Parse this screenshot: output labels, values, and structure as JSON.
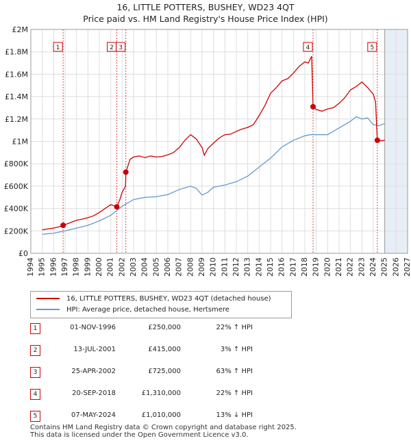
{
  "chart_data": {
    "type": "line",
    "title": "16, LITTLE POTTERS, BUSHEY, WD23 4QT",
    "subtitle": "Price paid vs. HM Land Registry's House Price Index (HPI)",
    "xlim": [
      1994,
      2027
    ],
    "ylim": [
      0,
      2000000
    ],
    "x_ticks": [
      1994,
      1995,
      1996,
      1997,
      1998,
      1999,
      2000,
      2001,
      2002,
      2003,
      2004,
      2005,
      2006,
      2007,
      2008,
      2009,
      2010,
      2011,
      2012,
      2013,
      2014,
      2015,
      2016,
      2017,
      2018,
      2019,
      2020,
      2021,
      2022,
      2023,
      2024,
      2025,
      2026,
      2027
    ],
    "y_ticks": [
      0,
      200000,
      400000,
      600000,
      800000,
      1000000,
      1200000,
      1400000,
      1600000,
      1800000,
      2000000
    ],
    "y_tick_labels": [
      "£0",
      "£200K",
      "£400K",
      "£600K",
      "£800K",
      "£1M",
      "£1.2M",
      "£1.4M",
      "£1.6M",
      "£1.8M",
      "£2M"
    ],
    "grid": true,
    "shaded_after": 2025.0,
    "colors": {
      "property": "#cc0000",
      "hpi": "#6699cc",
      "shade": "#e8eef6",
      "vline": "#dd4444"
    },
    "series": [
      {
        "name": "16, LITTLE POTTERS, BUSHEY, WD23 4QT (detached house)",
        "color": "#cc0000",
        "points": [
          [
            1995.0,
            210000
          ],
          [
            1995.5,
            218000
          ],
          [
            1996.0,
            225000
          ],
          [
            1996.5,
            238000
          ],
          [
            1996.83,
            250000
          ],
          [
            1997.5,
            275000
          ],
          [
            1998.0,
            295000
          ],
          [
            1998.5,
            305000
          ],
          [
            1999.0,
            318000
          ],
          [
            1999.5,
            335000
          ],
          [
            2000.0,
            365000
          ],
          [
            2000.5,
            400000
          ],
          [
            2001.0,
            435000
          ],
          [
            2001.53,
            415000
          ],
          [
            2001.8,
            480000
          ],
          [
            2002.0,
            545000
          ],
          [
            2002.3,
            600000
          ],
          [
            2002.32,
            725000
          ],
          [
            2002.7,
            840000
          ],
          [
            2003.0,
            860000
          ],
          [
            2003.5,
            870000
          ],
          [
            2004.0,
            855000
          ],
          [
            2004.5,
            870000
          ],
          [
            2005.0,
            860000
          ],
          [
            2005.5,
            865000
          ],
          [
            2006.0,
            880000
          ],
          [
            2006.5,
            900000
          ],
          [
            2007.0,
            945000
          ],
          [
            2007.5,
            1010000
          ],
          [
            2008.0,
            1060000
          ],
          [
            2008.5,
            1020000
          ],
          [
            2009.0,
            945000
          ],
          [
            2009.2,
            875000
          ],
          [
            2009.5,
            935000
          ],
          [
            2010.0,
            985000
          ],
          [
            2010.5,
            1030000
          ],
          [
            2011.0,
            1060000
          ],
          [
            2011.5,
            1065000
          ],
          [
            2012.0,
            1090000
          ],
          [
            2012.5,
            1110000
          ],
          [
            2013.0,
            1125000
          ],
          [
            2013.5,
            1150000
          ],
          [
            2014.0,
            1230000
          ],
          [
            2014.5,
            1320000
          ],
          [
            2015.0,
            1430000
          ],
          [
            2015.5,
            1480000
          ],
          [
            2016.0,
            1540000
          ],
          [
            2016.5,
            1560000
          ],
          [
            2017.0,
            1610000
          ],
          [
            2017.5,
            1670000
          ],
          [
            2018.0,
            1710000
          ],
          [
            2018.3,
            1700000
          ],
          [
            2018.6,
            1760000
          ],
          [
            2018.72,
            1310000
          ],
          [
            2019.0,
            1285000
          ],
          [
            2019.5,
            1270000
          ],
          [
            2020.0,
            1290000
          ],
          [
            2020.5,
            1300000
          ],
          [
            2021.0,
            1340000
          ],
          [
            2021.5,
            1390000
          ],
          [
            2022.0,
            1460000
          ],
          [
            2022.5,
            1490000
          ],
          [
            2023.0,
            1530000
          ],
          [
            2023.5,
            1480000
          ],
          [
            2024.0,
            1420000
          ],
          [
            2024.2,
            1350000
          ],
          [
            2024.35,
            1010000
          ],
          [
            2024.7,
            1005000
          ],
          [
            2025.0,
            1010000
          ]
        ]
      },
      {
        "name": "HPI: Average price, detached house, Hertsmere",
        "color": "#6699cc",
        "points": [
          [
            1995.0,
            170000
          ],
          [
            1996.0,
            180000
          ],
          [
            1997.0,
            200000
          ],
          [
            1998.0,
            225000
          ],
          [
            1999.0,
            250000
          ],
          [
            2000.0,
            290000
          ],
          [
            2001.0,
            340000
          ],
          [
            2002.0,
            420000
          ],
          [
            2003.0,
            480000
          ],
          [
            2004.0,
            500000
          ],
          [
            2005.0,
            505000
          ],
          [
            2006.0,
            525000
          ],
          [
            2007.0,
            570000
          ],
          [
            2008.0,
            600000
          ],
          [
            2008.5,
            580000
          ],
          [
            2009.0,
            520000
          ],
          [
            2009.5,
            545000
          ],
          [
            2010.0,
            590000
          ],
          [
            2011.0,
            610000
          ],
          [
            2012.0,
            640000
          ],
          [
            2013.0,
            690000
          ],
          [
            2014.0,
            770000
          ],
          [
            2015.0,
            850000
          ],
          [
            2016.0,
            950000
          ],
          [
            2017.0,
            1010000
          ],
          [
            2018.0,
            1050000
          ],
          [
            2018.5,
            1060000
          ],
          [
            2019.0,
            1060000
          ],
          [
            2020.0,
            1060000
          ],
          [
            2021.0,
            1120000
          ],
          [
            2022.0,
            1180000
          ],
          [
            2022.5,
            1220000
          ],
          [
            2023.0,
            1200000
          ],
          [
            2023.5,
            1210000
          ],
          [
            2024.0,
            1150000
          ],
          [
            2024.5,
            1140000
          ],
          [
            2025.0,
            1160000
          ]
        ]
      }
    ],
    "transactions": [
      {
        "n": "1",
        "x": 1996.83,
        "price": 250000
      },
      {
        "n": "2",
        "x": 2001.53,
        "price": 415000
      },
      {
        "n": "3",
        "x": 2002.32,
        "price": 725000
      },
      {
        "n": "4",
        "x": 2018.72,
        "price": 1310000
      },
      {
        "n": "5",
        "x": 2024.35,
        "price": 1010000
      }
    ]
  },
  "legend": {
    "property_label": "16, LITTLE POTTERS, BUSHEY, WD23 4QT (detached house)",
    "hpi_label": "HPI: Average price, detached house, Hertsmere"
  },
  "table": [
    {
      "n": "1",
      "date": "01-NOV-1996",
      "price": "£250,000",
      "hpi": "22% ↑ HPI"
    },
    {
      "n": "2",
      "date": "13-JUL-2001",
      "price": "£415,000",
      "hpi": "3% ↑ HPI"
    },
    {
      "n": "3",
      "date": "25-APR-2002",
      "price": "£725,000",
      "hpi": "63% ↑ HPI"
    },
    {
      "n": "4",
      "date": "20-SEP-2018",
      "price": "£1,310,000",
      "hpi": "22% ↑ HPI"
    },
    {
      "n": "5",
      "date": "07-MAY-2024",
      "price": "£1,010,000",
      "hpi": "13% ↓ HPI"
    }
  ],
  "footer": {
    "line1": "Contains HM Land Registry data © Crown copyright and database right 2025.",
    "line2": "This data is licensed under the Open Government Licence v3.0."
  }
}
